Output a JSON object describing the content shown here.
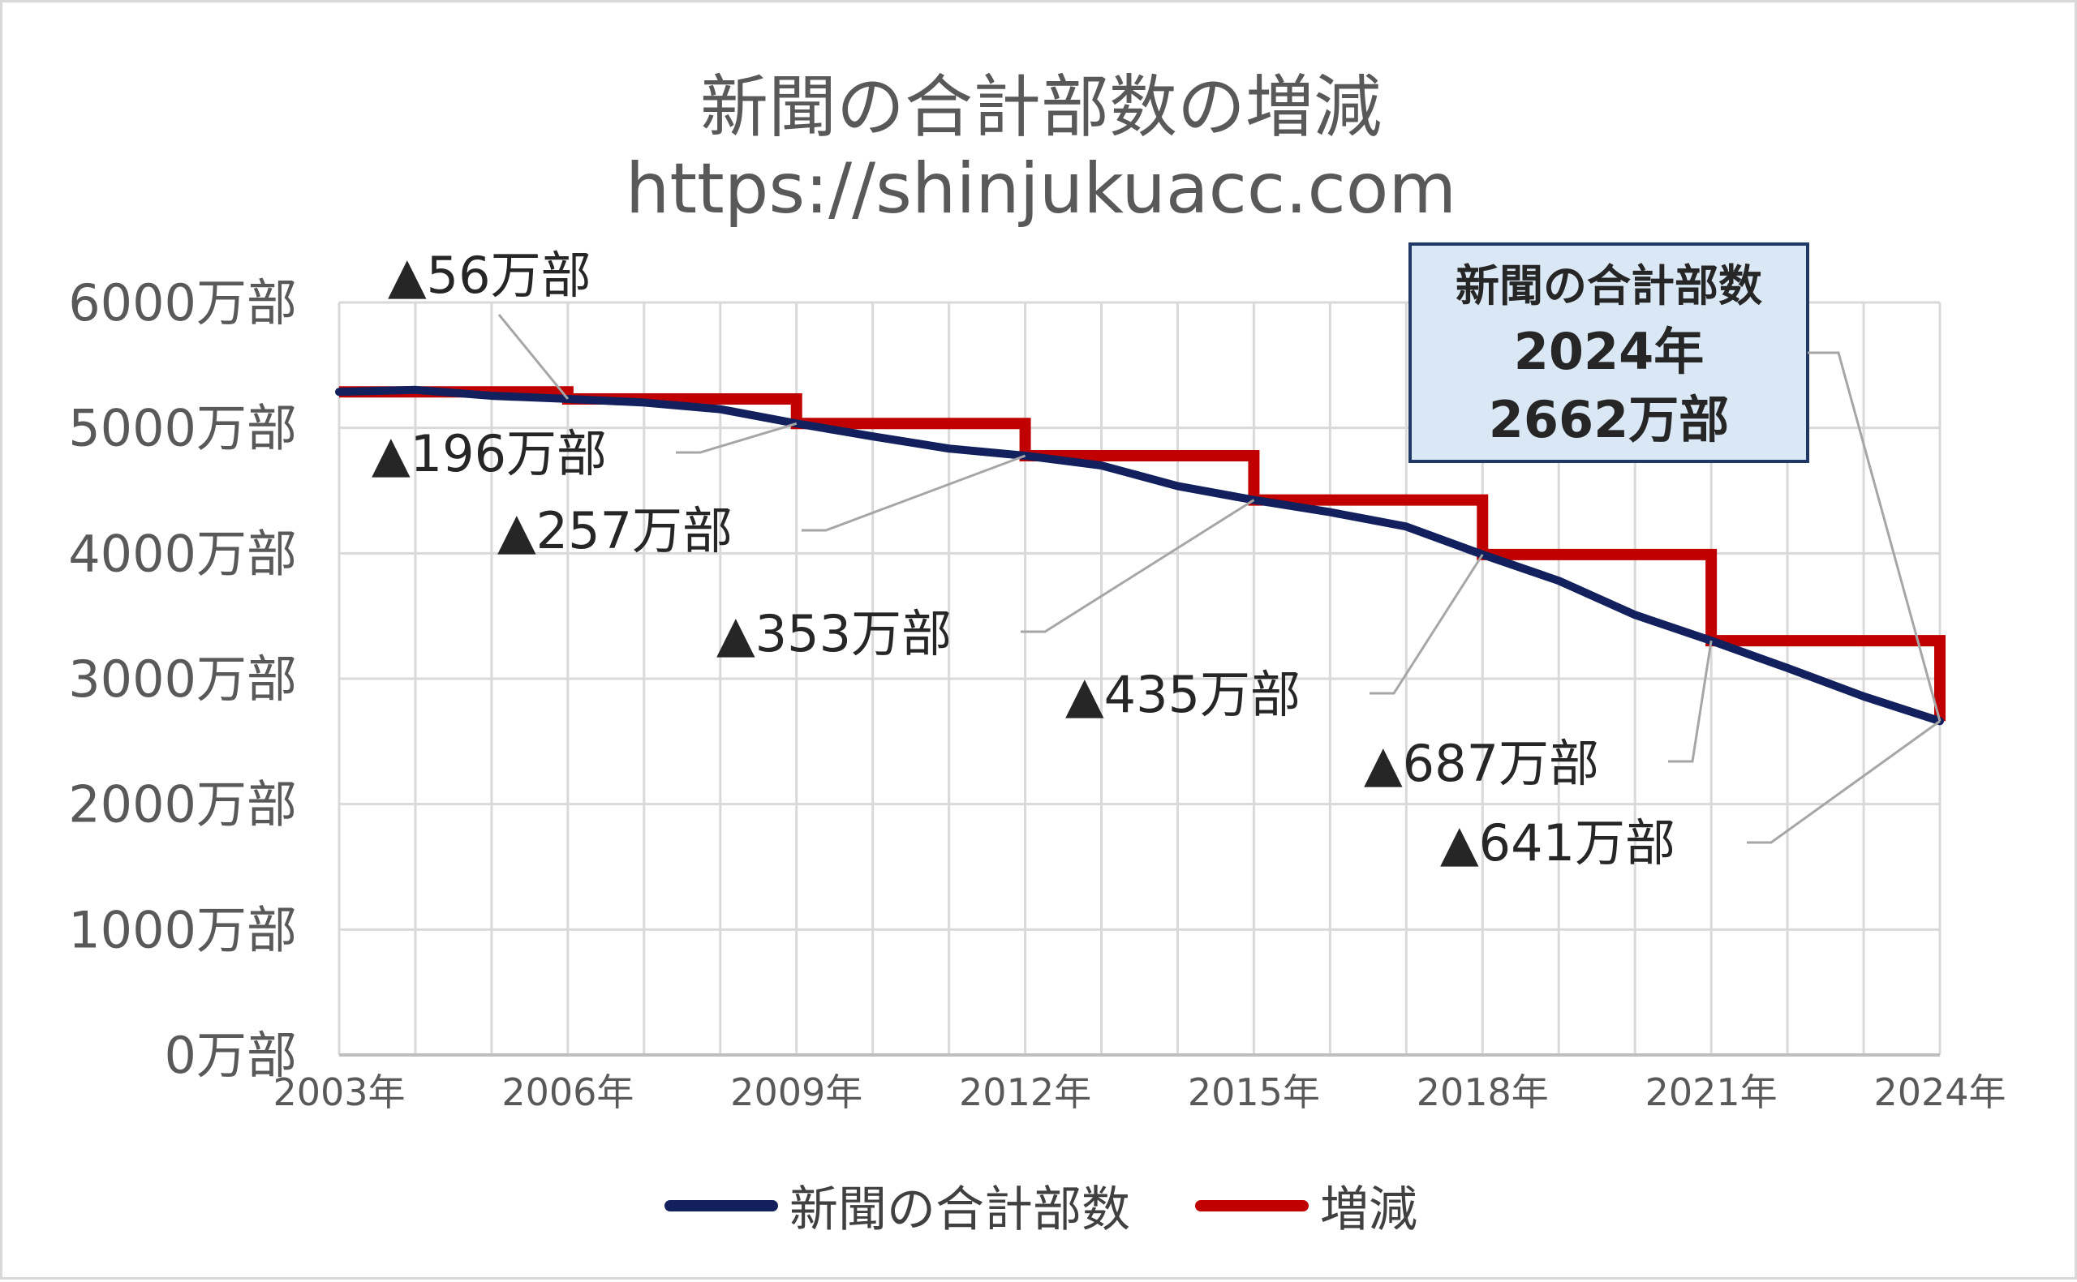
{
  "chart_data": {
    "type": "line",
    "title": "新聞の合計部数の増減",
    "subtitle": "https://shinjukuacc.com",
    "x": [
      2003,
      2004,
      2005,
      2006,
      2007,
      2008,
      2009,
      2010,
      2011,
      2012,
      2013,
      2014,
      2015,
      2016,
      2017,
      2018,
      2019,
      2020,
      2021,
      2022,
      2023,
      2024
    ],
    "x_tick_labels": [
      "2003年",
      "2006年",
      "2009年",
      "2012年",
      "2015年",
      "2018年",
      "2021年",
      "2024年"
    ],
    "y_tick_labels": [
      "0万部",
      "1000万部",
      "2000万部",
      "3000万部",
      "4000万部",
      "5000万部",
      "6000万部"
    ],
    "ylim": [
      0,
      6000
    ],
    "grid": true,
    "legend_position": "bottom",
    "series": [
      {
        "name": "新聞の合計部数",
        "color": "#12215e",
        "values": [
          5287,
          5303,
          5256,
          5231,
          5202,
          5149,
          5035,
          4932,
          4835,
          4778,
          4700,
          4536,
          4425,
          4328,
          4213,
          3990,
          3781,
          3509,
          3303,
          3085,
          2859,
          2662
        ]
      },
      {
        "name": "増減",
        "color": "#c00000",
        "step_x": [
          2003,
          2006,
          2009,
          2012,
          2015,
          2018,
          2021,
          2024
        ],
        "step_values": [
          5287,
          5231,
          5035,
          4778,
          4425,
          3990,
          3303,
          2662
        ]
      }
    ],
    "annotations": [
      {
        "text": "▲56万部",
        "point": [
          2006,
          5231
        ]
      },
      {
        "text": "▲196万部",
        "point": [
          2009,
          5035
        ]
      },
      {
        "text": "▲257万部",
        "point": [
          2012,
          4778
        ]
      },
      {
        "text": "▲353万部",
        "point": [
          2015,
          4425
        ]
      },
      {
        "text": "▲435万部",
        "point": [
          2018,
          3990
        ]
      },
      {
        "text": "▲687万部",
        "point": [
          2021,
          3303
        ]
      },
      {
        "text": "▲641万部",
        "point": [
          2024,
          2662
        ]
      }
    ],
    "callout": {
      "lines": [
        "新聞の合計部数",
        "2024年",
        "2662万部"
      ],
      "point": [
        2024,
        2662
      ],
      "fill": "#dae8f5",
      "border": "#1f3864"
    }
  }
}
